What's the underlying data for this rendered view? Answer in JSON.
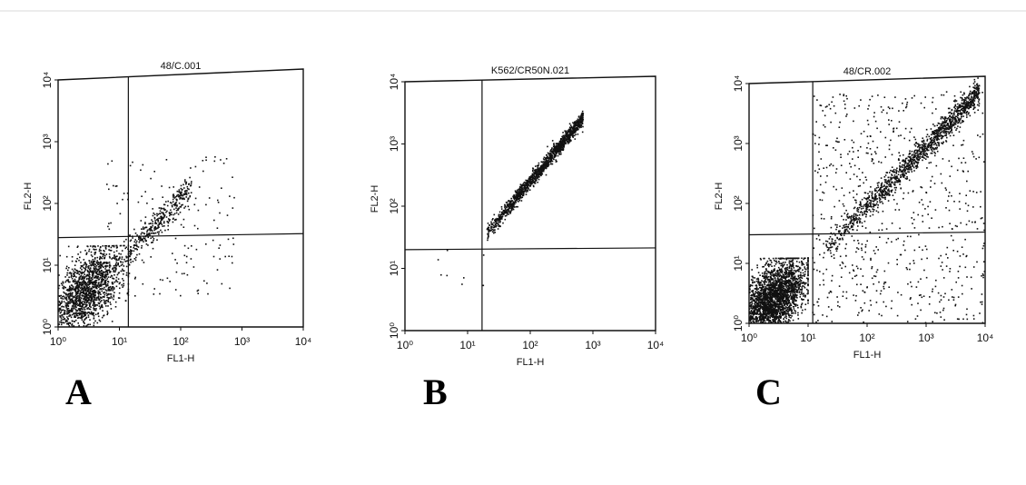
{
  "figure": {
    "panel_letters": [
      "A",
      "B",
      "C"
    ]
  },
  "chart_data": [
    {
      "type": "scatter",
      "panel": "A",
      "title": "48/C.001",
      "xlabel": "FL1-H",
      "ylabel": "FL2-H",
      "xscale": "log",
      "yscale": "log",
      "xlim": [
        1,
        10000
      ],
      "ylim": [
        1,
        10000
      ],
      "tick_labels": [
        "10⁰",
        "10¹",
        "10²",
        "10³",
        "10⁴"
      ],
      "quadrant_gate": {
        "x": 14,
        "y": 28
      },
      "grid": false,
      "series": [
        {
          "distribution": "dense cluster",
          "x_center": 3,
          "y_center": 4,
          "x_range": [
            1,
            14
          ],
          "y_range": [
            1,
            20
          ],
          "points": 1500
        },
        {
          "distribution": "diagonal band",
          "x_range": [
            8,
            150
          ],
          "slope": 1.0,
          "offset": 1.1,
          "spread": 0.12,
          "points": 400
        },
        {
          "distribution": "sparse scatter",
          "x_range": [
            5,
            800
          ],
          "y_range": [
            3,
            500
          ],
          "points": 140
        }
      ]
    },
    {
      "type": "scatter",
      "panel": "B",
      "title": "K562/CR50N.021",
      "xlabel": "FL1-H",
      "ylabel": "FL2-H",
      "xscale": "log",
      "yscale": "log",
      "xlim": [
        1,
        10000
      ],
      "ylim": [
        1,
        10000
      ],
      "tick_labels": [
        "10⁰",
        "10¹",
        "10²",
        "10³",
        "10⁴"
      ],
      "quadrant_gate": {
        "x": 17,
        "y": 20
      },
      "grid": false,
      "series": [
        {
          "distribution": "diagonal band",
          "x_range": [
            20,
            700
          ],
          "slope": 1.18,
          "offset": 1.02,
          "spread": 0.06,
          "points": 1400
        },
        {
          "distribution": "sparse scatter",
          "x_range": [
            3,
            20
          ],
          "y_range": [
            4,
            20
          ],
          "points": 8
        }
      ]
    },
    {
      "type": "scatter",
      "panel": "C",
      "title": "48/CR.002",
      "xlabel": "FL1-H",
      "ylabel": "FL2-H",
      "xscale": "log",
      "yscale": "log",
      "xlim": [
        1,
        10000
      ],
      "ylim": [
        1,
        10000
      ],
      "tick_labels": [
        "10⁰",
        "10¹",
        "10²",
        "10³",
        "10⁴"
      ],
      "quadrant_gate": {
        "x": 12,
        "y": 30
      },
      "grid": false,
      "series": [
        {
          "distribution": "dense cluster",
          "x_center": 2.5,
          "y_center": 2.5,
          "x_range": [
            1,
            10
          ],
          "y_range": [
            1,
            12
          ],
          "points": 2600
        },
        {
          "distribution": "diagonal band",
          "x_range": [
            20,
            8000
          ],
          "slope": 0.96,
          "offset": 1.0,
          "spread": 0.1,
          "points": 1300
        },
        {
          "distribution": "sparse scatter",
          "x_range": [
            12,
            10000
          ],
          "y_range": [
            1,
            6000
          ],
          "points": 700
        }
      ]
    }
  ]
}
